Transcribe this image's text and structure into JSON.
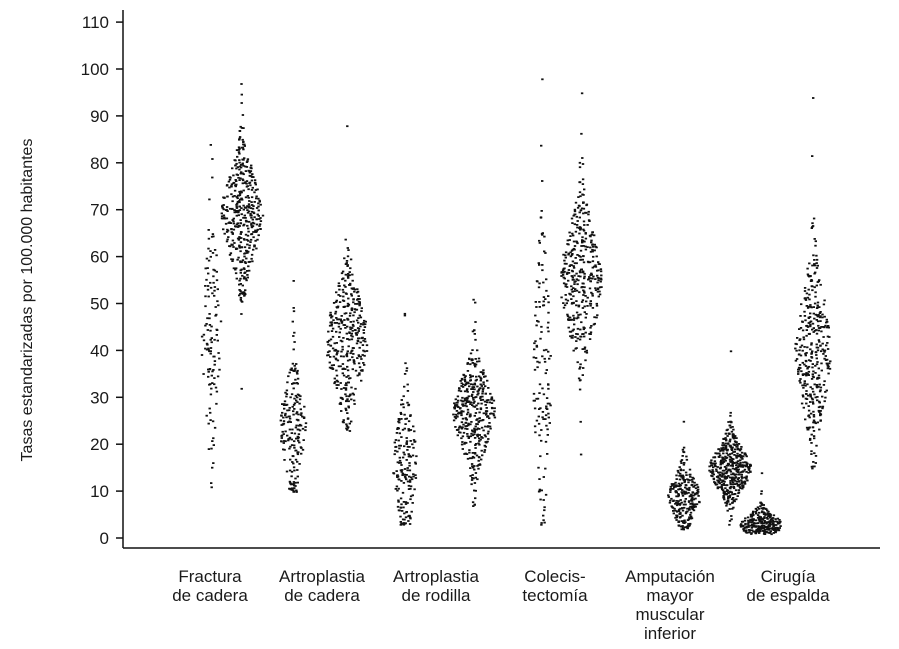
{
  "chart_data": {
    "type": "scatter",
    "subtype": "beeswarm dot plot",
    "title": "",
    "xlabel": "",
    "ylabel": "Tasas estandarizadas por 100.000 habitantes",
    "ylim": [
      0,
      110
    ],
    "yticks": [
      0,
      10,
      20,
      30,
      40,
      50,
      60,
      70,
      80,
      90,
      100,
      110
    ],
    "grid": false,
    "legend": "none",
    "dot_color": "#111111",
    "groups": [
      {
        "label_lines": [
          "Fractura",
          "de cadera"
        ],
        "series": [
          {
            "min": 11,
            "max": 84,
            "center": 44,
            "spread": 14,
            "n": 120,
            "max_width": 18
          },
          {
            "min": 32,
            "max": 97,
            "center": 69,
            "spread": 8,
            "n": 420,
            "max_width": 40
          }
        ]
      },
      {
        "label_lines": [
          "Artroplastia",
          "de cadera"
        ],
        "series": [
          {
            "min": 10,
            "max": 55,
            "center": 24,
            "spread": 8,
            "n": 200,
            "max_width": 24
          },
          {
            "min": 23,
            "max": 88,
            "center": 42,
            "spread": 9,
            "n": 360,
            "max_width": 40
          }
        ]
      },
      {
        "label_lines": [
          "Artroplastia",
          "de rodilla"
        ],
        "series": [
          {
            "min": 3,
            "max": 48,
            "center": 16,
            "spread": 9,
            "n": 180,
            "max_width": 22
          },
          {
            "min": 7,
            "max": 51,
            "center": 27,
            "spread": 7,
            "n": 380,
            "max_width": 40
          }
        ]
      },
      {
        "label_lines": [
          "Colecis-",
          "tectomía"
        ],
        "series": [
          {
            "min": 3,
            "max": 98,
            "center": 35,
            "spread": 18,
            "n": 130,
            "max_width": 16
          },
          {
            "min": 18,
            "max": 95,
            "center": 55,
            "spread": 10,
            "n": 380,
            "max_width": 40
          }
        ]
      },
      {
        "label_lines": [
          "Amputación",
          "mayor",
          "muscular",
          "inferior"
        ],
        "series": [
          {
            "min": 2,
            "max": 25,
            "center": 9,
            "spread": 4,
            "n": 260,
            "max_width": 30
          },
          {
            "min": 3,
            "max": 40,
            "center": 15,
            "spread": 4,
            "n": 460,
            "max_width": 40
          }
        ]
      },
      {
        "label_lines": [
          "Cirugía",
          "de espalda"
        ],
        "series": [
          {
            "min": 1,
            "max": 14,
            "center": 3,
            "spread": 2,
            "n": 260,
            "max_width": 40
          },
          {
            "min": 15,
            "max": 94,
            "center": 40,
            "spread": 11,
            "n": 360,
            "max_width": 34
          }
        ]
      }
    ]
  }
}
